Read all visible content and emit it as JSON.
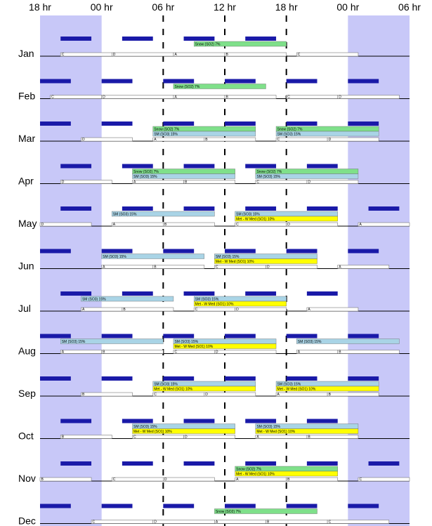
{
  "chart_data": {
    "type": "timeline",
    "x_axis": {
      "ticks": [
        {
          "hour": -6,
          "label": "18 hr"
        },
        {
          "hour": 0,
          "label": "00 hr"
        },
        {
          "hour": 6,
          "label": "06 hr"
        },
        {
          "hour": 12,
          "label": "12 hr"
        },
        {
          "hour": 18,
          "label": "18 hr"
        },
        {
          "hour": 24,
          "label": "00 hr"
        },
        {
          "hour": 30,
          "label": "06 hr"
        }
      ],
      "range_hours": [
        -6,
        30
      ],
      "dashed_lines_hours": [
        6,
        12,
        18
      ],
      "shaded_ranges_hours": [
        [
          -6,
          0
        ],
        [
          24,
          30
        ]
      ],
      "shade_color": "#c8c8f8"
    },
    "colors": {
      "navy": "#1a1aa8",
      "green": "#7fe08a",
      "lightblue": "#a9d4e6",
      "yellow": "#ffff00",
      "axis": "#000000"
    },
    "months": [
      {
        "name": "Jan",
        "navy_blocks": [
          [
            -4,
            -1
          ],
          [
            2,
            5
          ],
          [
            8,
            11
          ],
          [
            14,
            17
          ]
        ],
        "bars": [
          {
            "label": "Snow (SO2) 7%",
            "start": 9,
            "end": 18,
            "color": "green"
          }
        ],
        "segments": [
          {
            "start": -4,
            "end": 1,
            "letter": "C"
          },
          {
            "start": 1,
            "end": 7,
            "letter": "D"
          },
          {
            "start": 7,
            "end": 12,
            "letter": "A"
          },
          {
            "start": 12,
            "end": 18,
            "letter": "B"
          },
          {
            "start": 19,
            "end": 25,
            "letter": "C"
          }
        ]
      },
      {
        "name": "Feb",
        "navy_blocks": [
          [
            -6,
            -3
          ],
          [
            0,
            3
          ],
          [
            6,
            9
          ],
          [
            12,
            15
          ],
          [
            18,
            21
          ],
          [
            24,
            27
          ]
        ],
        "bars": [
          {
            "label": "Snow (SO2) 7%",
            "start": 7,
            "end": 16,
            "color": "green"
          }
        ],
        "segments": [
          {
            "start": -5,
            "end": 0,
            "letter": "C"
          },
          {
            "start": 0,
            "end": 7,
            "letter": "D"
          },
          {
            "start": 7,
            "end": 12,
            "letter": "A"
          },
          {
            "start": 12,
            "end": 17,
            "letter": "B"
          },
          {
            "start": 18,
            "end": 23,
            "letter": "C"
          },
          {
            "start": 23,
            "end": 29,
            "letter": "D"
          }
        ]
      },
      {
        "name": "Mar",
        "navy_blocks": [
          [
            -6,
            -3
          ],
          [
            0,
            3
          ],
          [
            6,
            9
          ],
          [
            12,
            15
          ],
          [
            18,
            21
          ],
          [
            24,
            27
          ]
        ],
        "bars": [
          {
            "label": "Snow (SO2) 7%",
            "start": 5,
            "end": 15,
            "color": "green"
          },
          {
            "label": "SM (SO3) 15%",
            "start": 5,
            "end": 15,
            "color": "lightblue"
          },
          {
            "label": "Snow (SO2) 7%",
            "start": 17,
            "end": 27,
            "color": "green"
          },
          {
            "label": "SM (SO3) 15%",
            "start": 17,
            "end": 27,
            "color": "lightblue"
          }
        ],
        "segments": [
          {
            "start": -2,
            "end": 3,
            "letter": "D"
          },
          {
            "start": 5,
            "end": 10,
            "letter": "A"
          },
          {
            "start": 10,
            "end": 15,
            "letter": "B"
          },
          {
            "start": 17,
            "end": 22,
            "letter": "C"
          },
          {
            "start": 22,
            "end": 27,
            "letter": "D"
          }
        ]
      },
      {
        "name": "Apr",
        "navy_blocks": [
          [
            -4,
            -1
          ],
          [
            2,
            5
          ],
          [
            8,
            11
          ],
          [
            14,
            17
          ],
          [
            20,
            23
          ]
        ],
        "bars": [
          {
            "label": "Snow (SO2) 7%",
            "start": 3,
            "end": 13,
            "color": "green"
          },
          {
            "label": "SM (SO3) 15%",
            "start": 3,
            "end": 13,
            "color": "lightblue"
          },
          {
            "label": "Snow (SO2) 7%",
            "start": 15,
            "end": 25,
            "color": "green"
          },
          {
            "label": "SM (SO3) 15%",
            "start": 15,
            "end": 25,
            "color": "lightblue"
          }
        ],
        "segments": [
          {
            "start": -4,
            "end": 1,
            "letter": "D"
          },
          {
            "start": 3,
            "end": 8,
            "letter": "A"
          },
          {
            "start": 8,
            "end": 13,
            "letter": "B"
          },
          {
            "start": 15,
            "end": 20,
            "letter": "C"
          },
          {
            "start": 20,
            "end": 25,
            "letter": "D"
          }
        ]
      },
      {
        "name": "May",
        "navy_blocks": [
          [
            -4,
            -1
          ],
          [
            2,
            5
          ],
          [
            8,
            11
          ],
          [
            14,
            17
          ],
          [
            20,
            23
          ],
          [
            26,
            29
          ]
        ],
        "bars": [
          {
            "label": "SM (SO3) 15%",
            "start": 1,
            "end": 11,
            "color": "lightblue"
          },
          {
            "label": "SM (SO3) 15%",
            "start": 13,
            "end": 23,
            "color": "lightblue"
          },
          {
            "label": "Met - W Med (SO1) 10%",
            "start": 13,
            "end": 23,
            "color": "yellow"
          }
        ],
        "segments": [
          {
            "start": -6,
            "end": -1,
            "letter": "D"
          },
          {
            "start": 1,
            "end": 6,
            "letter": "A"
          },
          {
            "start": 6,
            "end": 11,
            "letter": "B"
          },
          {
            "start": 13,
            "end": 18,
            "letter": "C"
          },
          {
            "start": 18,
            "end": 23,
            "letter": "D"
          },
          {
            "start": 25,
            "end": 30,
            "letter": "A"
          }
        ]
      },
      {
        "name": "Jun",
        "navy_blocks": [
          [
            -6,
            -3
          ],
          [
            0,
            3
          ],
          [
            6,
            9
          ],
          [
            12,
            15
          ],
          [
            18,
            21
          ],
          [
            24,
            27
          ]
        ],
        "bars": [
          {
            "label": "SM (SO3) 15%",
            "start": 0,
            "end": 10,
            "color": "lightblue"
          },
          {
            "label": "SM (SO3) 15%",
            "start": 11,
            "end": 21,
            "color": "lightblue"
          },
          {
            "label": "Met - W Med (SO1) 10%",
            "start": 11,
            "end": 21,
            "color": "yellow"
          }
        ],
        "segments": [
          {
            "start": 0,
            "end": 5,
            "letter": "A"
          },
          {
            "start": 5,
            "end": 10,
            "letter": "B"
          },
          {
            "start": 11,
            "end": 16,
            "letter": "C"
          },
          {
            "start": 16,
            "end": 21,
            "letter": "D"
          },
          {
            "start": 23,
            "end": 28,
            "letter": "A"
          }
        ]
      },
      {
        "name": "Jul",
        "navy_blocks": [
          [
            -4,
            -1
          ],
          [
            2,
            5
          ],
          [
            8,
            11
          ],
          [
            14,
            17
          ],
          [
            20,
            23
          ]
        ],
        "bars": [
          {
            "label": "SM (SO3) 15%",
            "start": -2,
            "end": 7,
            "color": "lightblue"
          },
          {
            "label": "SM (SO3) 15%",
            "start": 9,
            "end": 18,
            "color": "lightblue"
          },
          {
            "label": "Met - W Med (SO1) 10%",
            "start": 9,
            "end": 18,
            "color": "yellow"
          }
        ],
        "segments": [
          {
            "start": -2,
            "end": 2,
            "letter": "A"
          },
          {
            "start": 2,
            "end": 7,
            "letter": "B"
          },
          {
            "start": 9,
            "end": 13,
            "letter": "C"
          },
          {
            "start": 13,
            "end": 18,
            "letter": "D"
          },
          {
            "start": 20,
            "end": 25,
            "letter": "A"
          }
        ]
      },
      {
        "name": "Aug",
        "navy_blocks": [
          [
            -6,
            -3
          ],
          [
            0,
            3
          ],
          [
            6,
            9
          ],
          [
            12,
            15
          ],
          [
            18,
            21
          ],
          [
            24,
            27
          ]
        ],
        "bars": [
          {
            "label": "SM (SO3) 15%",
            "start": -4,
            "end": 6,
            "color": "lightblue"
          },
          {
            "label": "SM (SO3) 15%",
            "start": 7,
            "end": 17,
            "color": "lightblue"
          },
          {
            "label": "Met - W Med (SO1) 10%",
            "start": 7,
            "end": 17,
            "color": "yellow"
          },
          {
            "label": "SM (SO3) 15%",
            "start": 19,
            "end": 29,
            "color": "lightblue"
          }
        ],
        "segments": [
          {
            "start": -4,
            "end": 0,
            "letter": "A"
          },
          {
            "start": 0,
            "end": 6,
            "letter": "B"
          },
          {
            "start": 7,
            "end": 11,
            "letter": "C"
          },
          {
            "start": 11,
            "end": 17,
            "letter": "D"
          },
          {
            "start": 19,
            "end": 23,
            "letter": "A"
          },
          {
            "start": 23,
            "end": 29,
            "letter": "B"
          }
        ]
      },
      {
        "name": "Sep",
        "navy_blocks": [
          [
            -6,
            -3
          ],
          [
            0,
            3
          ],
          [
            6,
            9
          ],
          [
            12,
            15
          ],
          [
            18,
            21
          ],
          [
            24,
            27
          ]
        ],
        "bars": [
          {
            "label": "SM (SO3) 15%",
            "start": 5,
            "end": 15,
            "color": "lightblue"
          },
          {
            "label": "Met - W Med (SO1) 10%",
            "start": 5,
            "end": 15,
            "color": "yellow"
          },
          {
            "label": "SM (SO3) 15%",
            "start": 17,
            "end": 27,
            "color": "lightblue"
          },
          {
            "label": "Met - W Med (SO1) 10%",
            "start": 17,
            "end": 27,
            "color": "yellow"
          }
        ],
        "segments": [
          {
            "start": -2,
            "end": 3,
            "letter": "B"
          },
          {
            "start": 5,
            "end": 10,
            "letter": "C"
          },
          {
            "start": 10,
            "end": 15,
            "letter": "D"
          },
          {
            "start": 17,
            "end": 22,
            "letter": "A"
          },
          {
            "start": 22,
            "end": 27,
            "letter": "B"
          }
        ]
      },
      {
        "name": "Oct",
        "navy_blocks": [
          [
            -4,
            -1
          ],
          [
            2,
            5
          ],
          [
            8,
            11
          ],
          [
            14,
            17
          ],
          [
            20,
            23
          ]
        ],
        "bars": [
          {
            "label": "SM (SO3) 15%",
            "start": 3,
            "end": 13,
            "color": "lightblue"
          },
          {
            "label": "Met - W Med (SO1) 10%",
            "start": 3,
            "end": 13,
            "color": "yellow"
          },
          {
            "label": "SM (SO3) 15%",
            "start": 15,
            "end": 25,
            "color": "lightblue"
          },
          {
            "label": "Met - W Med (SO1) 10%",
            "start": 15,
            "end": 25,
            "color": "yellow"
          }
        ],
        "segments": [
          {
            "start": -4,
            "end": 1,
            "letter": "B"
          },
          {
            "start": 3,
            "end": 8,
            "letter": "C"
          },
          {
            "start": 8,
            "end": 13,
            "letter": "D"
          },
          {
            "start": 15,
            "end": 20,
            "letter": "A"
          },
          {
            "start": 20,
            "end": 25,
            "letter": "B"
          }
        ]
      },
      {
        "name": "Nov",
        "navy_blocks": [
          [
            -4,
            -1
          ],
          [
            2,
            5
          ],
          [
            8,
            11
          ],
          [
            14,
            17
          ],
          [
            20,
            23
          ],
          [
            26,
            29
          ]
        ],
        "bars": [
          {
            "label": "Snow (SO2) 7%",
            "start": 13,
            "end": 23,
            "color": "green"
          },
          {
            "label": "Met - W Med (SO1) 10%",
            "start": 13,
            "end": 23,
            "color": "yellow"
          }
        ],
        "segments": [
          {
            "start": -6,
            "end": -1,
            "letter": "B"
          },
          {
            "start": 1,
            "end": 6,
            "letter": "C"
          },
          {
            "start": 6,
            "end": 11,
            "letter": "D"
          },
          {
            "start": 13,
            "end": 18,
            "letter": "A"
          },
          {
            "start": 18,
            "end": 23,
            "letter": "B"
          },
          {
            "start": 25,
            "end": 30,
            "letter": "C"
          }
        ]
      },
      {
        "name": "Dec",
        "navy_blocks": [
          [
            -6,
            -3
          ],
          [
            0,
            3
          ],
          [
            6,
            9
          ],
          [
            12,
            15
          ],
          [
            18,
            21
          ],
          [
            24,
            27
          ]
        ],
        "bars": [
          {
            "label": "Snow (SO2) 7%",
            "start": 11,
            "end": 21,
            "color": "green"
          }
        ],
        "segments": [
          {
            "start": -1,
            "end": 5,
            "letter": "C"
          },
          {
            "start": 5,
            "end": 11,
            "letter": "D"
          },
          {
            "start": 11,
            "end": 16,
            "letter": "A"
          },
          {
            "start": 16,
            "end": 22,
            "letter": "B"
          },
          {
            "start": 22,
            "end": 28,
            "letter": "C"
          }
        ]
      }
    ]
  }
}
